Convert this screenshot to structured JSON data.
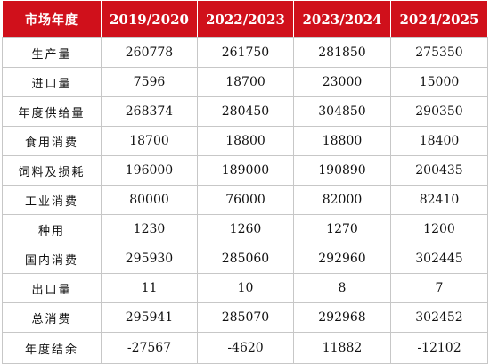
{
  "table": {
    "headers": [
      "市场年度",
      "2019/2020",
      "2022/2023",
      "2023/2024",
      "2024/2025"
    ],
    "rows": [
      {
        "label": "生产量",
        "values": [
          "260778",
          "261750",
          "281850",
          "275350"
        ]
      },
      {
        "label": "进口量",
        "values": [
          "7596",
          "18700",
          "23000",
          "15000"
        ]
      },
      {
        "label": "年度供给量",
        "values": [
          "268374",
          "280450",
          "304850",
          "290350"
        ]
      },
      {
        "label": "食用消费",
        "values": [
          "18700",
          "18800",
          "18800",
          "18400"
        ]
      },
      {
        "label": "饲料及损耗",
        "values": [
          "196000",
          "189000",
          "190890",
          "200435"
        ]
      },
      {
        "label": "工业消费",
        "values": [
          "80000",
          "76000",
          "82000",
          "82410"
        ]
      },
      {
        "label": "种用",
        "values": [
          "1230",
          "1260",
          "1270",
          "1200"
        ]
      },
      {
        "label": "国内消费",
        "values": [
          "295930",
          "285060",
          "292960",
          "302445"
        ]
      },
      {
        "label": "出口量",
        "values": [
          "11",
          "10",
          "8",
          "7"
        ]
      },
      {
        "label": "总消费",
        "values": [
          "295941",
          "285070",
          "292968",
          "302452"
        ]
      },
      {
        "label": "年度结余",
        "values": [
          "-27567",
          "-4620",
          "11882",
          "-12102"
        ]
      }
    ]
  },
  "colors": {
    "header_background": "#d0101b",
    "header_text": "#ffffff",
    "grid_line": "#c7c7c7"
  }
}
